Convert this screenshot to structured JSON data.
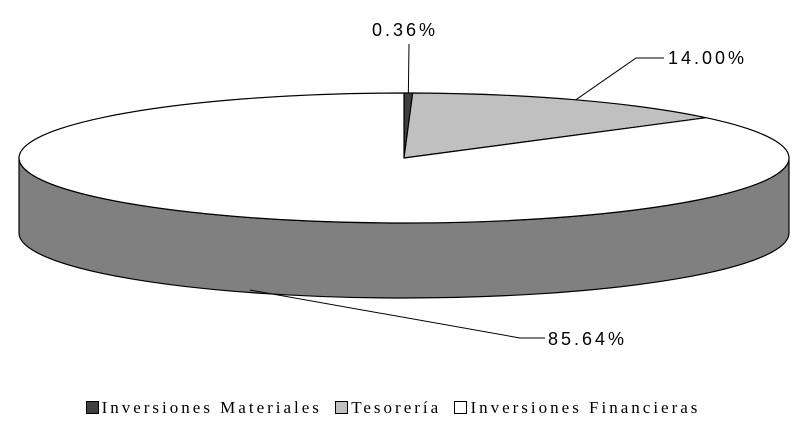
{
  "chart_data": {
    "type": "pie",
    "style": "3d",
    "categories": [
      "Inversiones Materiales",
      "Tesorería",
      "Inversiones Financieras"
    ],
    "values": [
      0.36,
      14.0,
      85.64
    ],
    "labels": [
      "0.36%",
      "14.00%",
      "85.64%"
    ],
    "colors": [
      "#404040",
      "#c0c0c0",
      "#ffffff"
    ],
    "side_color": "#808080",
    "legend_position": "bottom"
  }
}
